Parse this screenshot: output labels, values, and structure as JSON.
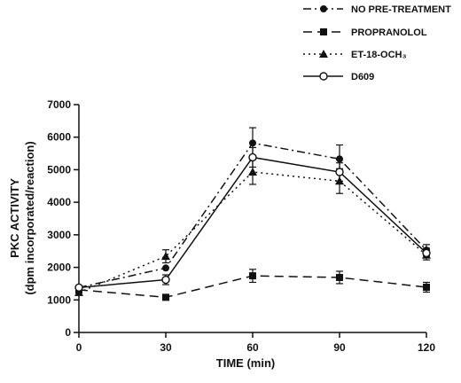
{
  "chart_data": {
    "type": "line",
    "xlabel": "TIME (min)",
    "ylabel": "PKC ACTIVITY",
    "ylabel_sub": "(dpm incorporated/reaction)",
    "x": [
      0,
      30,
      60,
      90,
      120
    ],
    "x_ticks": [
      "0",
      "30",
      "60",
      "90",
      "120"
    ],
    "xlim": [
      0,
      120
    ],
    "y_ticks": [
      "0",
      "1000",
      "2000",
      "3000",
      "4000",
      "5000",
      "6000",
      "7000"
    ],
    "ylim": [
      0,
      7000
    ],
    "grid": false,
    "legend_position": "top-right",
    "series": [
      {
        "name": "NO PRE-TREATMENT",
        "marker": "circle-filled",
        "line": "dash-dot",
        "values": [
          1380,
          1980,
          5820,
          5330,
          2530
        ],
        "errors": [
          0,
          0,
          470,
          430,
          170
        ]
      },
      {
        "name": "PROPRANOLOL",
        "marker": "square-filled",
        "line": "dashed",
        "values": [
          1310,
          1080,
          1740,
          1690,
          1390
        ],
        "errors": [
          0,
          0,
          200,
          190,
          150
        ]
      },
      {
        "name": "ET-18-OCH₃",
        "marker": "triangle-filled",
        "line": "dotted",
        "values": [
          1230,
          2340,
          4930,
          4650,
          2380
        ],
        "errors": [
          0,
          200,
          380,
          380,
          150
        ]
      },
      {
        "name": "D609",
        "marker": "circle-open",
        "line": "solid",
        "values": [
          1380,
          1620,
          5380,
          4930,
          2440
        ],
        "errors": [
          0,
          150,
          300,
          280,
          150
        ]
      }
    ]
  }
}
